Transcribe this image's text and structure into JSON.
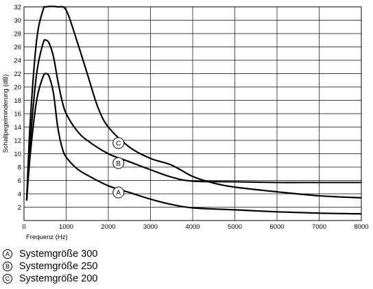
{
  "chart_data": {
    "type": "line",
    "title": "",
    "xlabel": "Frequenz (Hz)",
    "ylabel": "Schallpegelminderung (dB)",
    "xlim": [
      0,
      8000
    ],
    "ylim": [
      0,
      32
    ],
    "xticks": [
      0,
      1000,
      2000,
      3000,
      4000,
      5000,
      6000,
      7000,
      8000
    ],
    "yticks": [
      2,
      4,
      6,
      8,
      10,
      12,
      14,
      16,
      18,
      20,
      22,
      24,
      26,
      28,
      30,
      32
    ],
    "grid": true,
    "legend_position": "bottom-left, below chart",
    "series": [
      {
        "marker": "A",
        "points": [
          [
            63,
            3
          ],
          [
            150,
            10
          ],
          [
            300,
            18
          ],
          [
            450,
            21.5
          ],
          [
            525,
            22
          ],
          [
            600,
            21.5
          ],
          [
            700,
            19
          ],
          [
            800,
            14
          ],
          [
            900,
            11
          ],
          [
            1000,
            9.5
          ],
          [
            1250,
            7.8
          ],
          [
            1500,
            6.8
          ],
          [
            2000,
            5.2
          ],
          [
            2500,
            4.2
          ],
          [
            3000,
            3.2
          ],
          [
            3500,
            2.4
          ],
          [
            4000,
            1.9
          ],
          [
            5000,
            1.6
          ],
          [
            6000,
            1.3
          ],
          [
            7000,
            1.1
          ],
          [
            8000,
            1.0
          ]
        ]
      },
      {
        "marker": "B",
        "points": [
          [
            63,
            3
          ],
          [
            150,
            12
          ],
          [
            300,
            22
          ],
          [
            450,
            26.5
          ],
          [
            525,
            27
          ],
          [
            600,
            26.5
          ],
          [
            700,
            24.5
          ],
          [
            800,
            21
          ],
          [
            900,
            18
          ],
          [
            1000,
            16
          ],
          [
            1250,
            13.5
          ],
          [
            1500,
            12
          ],
          [
            2000,
            10
          ],
          [
            2500,
            8.8
          ],
          [
            3000,
            7.6
          ],
          [
            3500,
            6.5
          ],
          [
            4000,
            5.9
          ],
          [
            5000,
            5.8
          ],
          [
            6000,
            5.7
          ],
          [
            7000,
            5.7
          ],
          [
            8000,
            5.7
          ]
        ]
      },
      {
        "marker": "C",
        "points": [
          [
            63,
            3
          ],
          [
            150,
            15
          ],
          [
            300,
            27
          ],
          [
            450,
            31.5
          ],
          [
            525,
            32
          ],
          [
            800,
            32
          ],
          [
            1000,
            31.5
          ],
          [
            1250,
            27
          ],
          [
            1500,
            22
          ],
          [
            1750,
            17
          ],
          [
            2000,
            14
          ],
          [
            2500,
            11
          ],
          [
            3000,
            9.3
          ],
          [
            3500,
            8.3
          ],
          [
            4000,
            6.6
          ],
          [
            4500,
            5.6
          ],
          [
            5000,
            5.0
          ],
          [
            6000,
            4.3
          ],
          [
            7000,
            3.7
          ],
          [
            8000,
            3.4
          ]
        ]
      }
    ],
    "annotations": [
      {
        "marker": "C",
        "x": 2500,
        "y": 11.6
      },
      {
        "marker": "B",
        "x": 2500,
        "y": 8.6
      },
      {
        "marker": "A",
        "x": 2500,
        "y": 4.2
      }
    ]
  },
  "legend": [
    {
      "marker": "A",
      "label": "Systemgröße 300"
    },
    {
      "marker": "B",
      "label": "Systemgröße 250"
    },
    {
      "marker": "C",
      "label": "Systemgröße 200"
    }
  ]
}
